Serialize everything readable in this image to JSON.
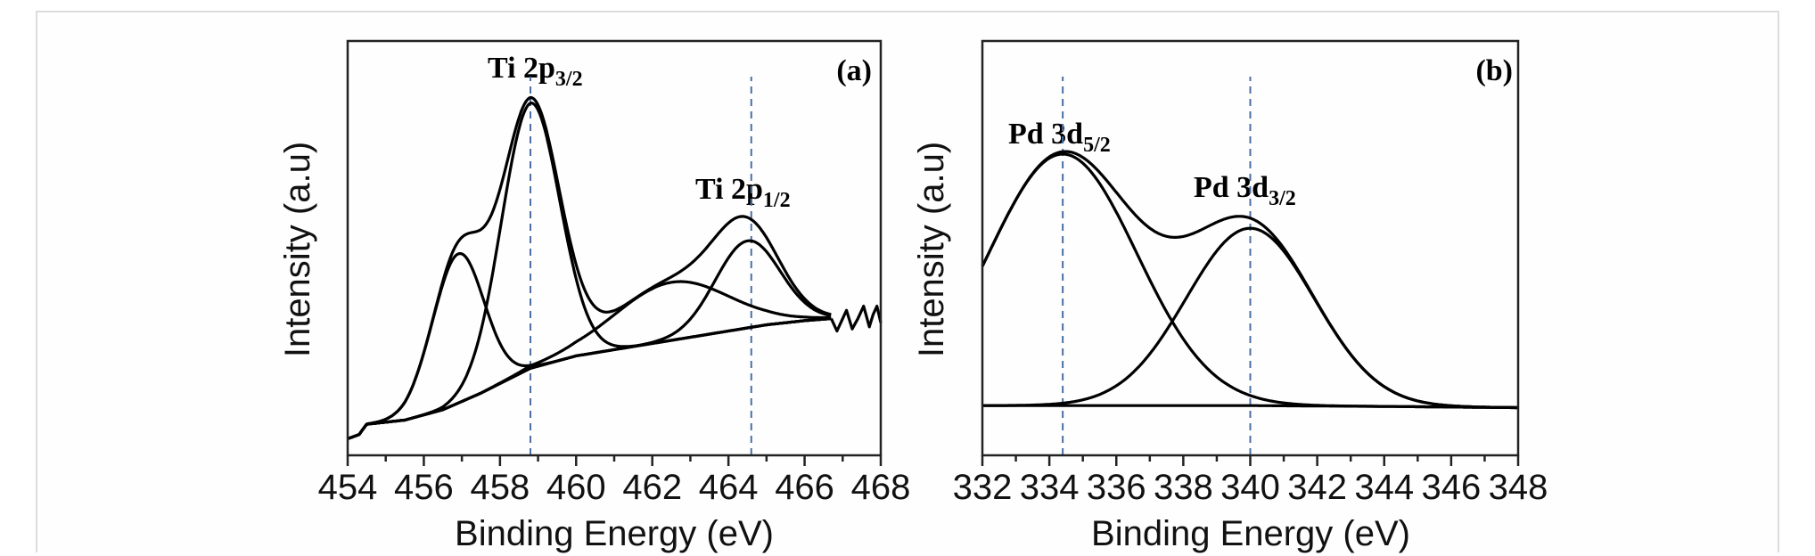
{
  "chart_data": [
    {
      "type": "line",
      "panel_label": "(a)",
      "xlabel": "Binding Energy (eV)",
      "ylabel": "Intensity (a.u)",
      "xlim": [
        454,
        468
      ],
      "ylim": [
        0,
        100
      ],
      "x_ticks": [
        "454",
        "456",
        "458",
        "460",
        "462",
        "464",
        "466",
        "468"
      ],
      "y_ticks": [],
      "grid": false,
      "annotations": [
        {
          "main": "Ti 2p",
          "sub": "3/2",
          "x": 458.8
        },
        {
          "main": "Ti 2p",
          "sub": "1/2",
          "x": 464.6
        }
      ],
      "reference_lines_x": [
        458.8,
        464.6
      ],
      "background": [
        [
          454.0,
          4
        ],
        [
          454.3,
          5
        ],
        [
          454.5,
          7.5
        ],
        [
          455.5,
          8.5
        ],
        [
          456.5,
          11
        ],
        [
          457.5,
          15
        ],
        [
          458.8,
          21
        ],
        [
          460,
          24
        ],
        [
          461,
          25.5
        ],
        [
          462,
          27
        ],
        [
          463,
          28.5
        ],
        [
          464,
          30
        ],
        [
          465,
          31.5
        ],
        [
          466,
          32.5
        ],
        [
          466.7,
          33
        ]
      ],
      "envelope_noise": [
        [
          454.0,
          4
        ],
        [
          454.2,
          5
        ],
        [
          454.35,
          11
        ],
        [
          454.5,
          7.5
        ],
        [
          466.7,
          33
        ],
        [
          466.85,
          30
        ],
        [
          467.0,
          33
        ],
        [
          467.1,
          35
        ],
        [
          467.25,
          30.5
        ],
        [
          467.4,
          33
        ],
        [
          467.55,
          36
        ],
        [
          467.7,
          31
        ],
        [
          467.8,
          34
        ],
        [
          467.9,
          36
        ],
        [
          468.0,
          32
        ]
      ],
      "peaks": [
        {
          "center": 456.9,
          "height": 36,
          "fwhm": 1.6
        },
        {
          "center": 458.8,
          "height": 64,
          "fwhm": 1.8
        },
        {
          "center": 462.5,
          "height": 14,
          "fwhm": 3.5
        },
        {
          "center": 464.5,
          "height": 21,
          "fwhm": 2.0
        }
      ],
      "line_color": "#000000",
      "reference_line_color": "#4a6fa5"
    },
    {
      "type": "line",
      "panel_label": "(b)",
      "xlabel": "Binding Energy (eV)",
      "ylabel": "Intensity (a.u)",
      "xlim": [
        332,
        348
      ],
      "ylim": [
        0,
        100
      ],
      "x_ticks": [
        "332",
        "334",
        "336",
        "338",
        "340",
        "342",
        "344",
        "346",
        "348"
      ],
      "y_ticks": [],
      "grid": false,
      "annotations": [
        {
          "main": "Pd 3d",
          "sub": "5/2",
          "x": 334.4
        },
        {
          "main": "Pd 3d",
          "sub": "3/2",
          "x": 340.0
        }
      ],
      "reference_lines_x": [
        334.4,
        340.0
      ],
      "background": [
        [
          332,
          12
        ],
        [
          336,
          12
        ],
        [
          340,
          12
        ],
        [
          344,
          11.8
        ],
        [
          348,
          11.5
        ]
      ],
      "envelope_noise": [],
      "peaks": [
        {
          "center": 334.4,
          "height": 60.7,
          "fwhm": 5.2
        },
        {
          "center": 340.0,
          "height": 42.8,
          "fwhm": 4.5
        }
      ],
      "line_color": "#000000",
      "reference_line_color": "#4a6fa5"
    }
  ]
}
